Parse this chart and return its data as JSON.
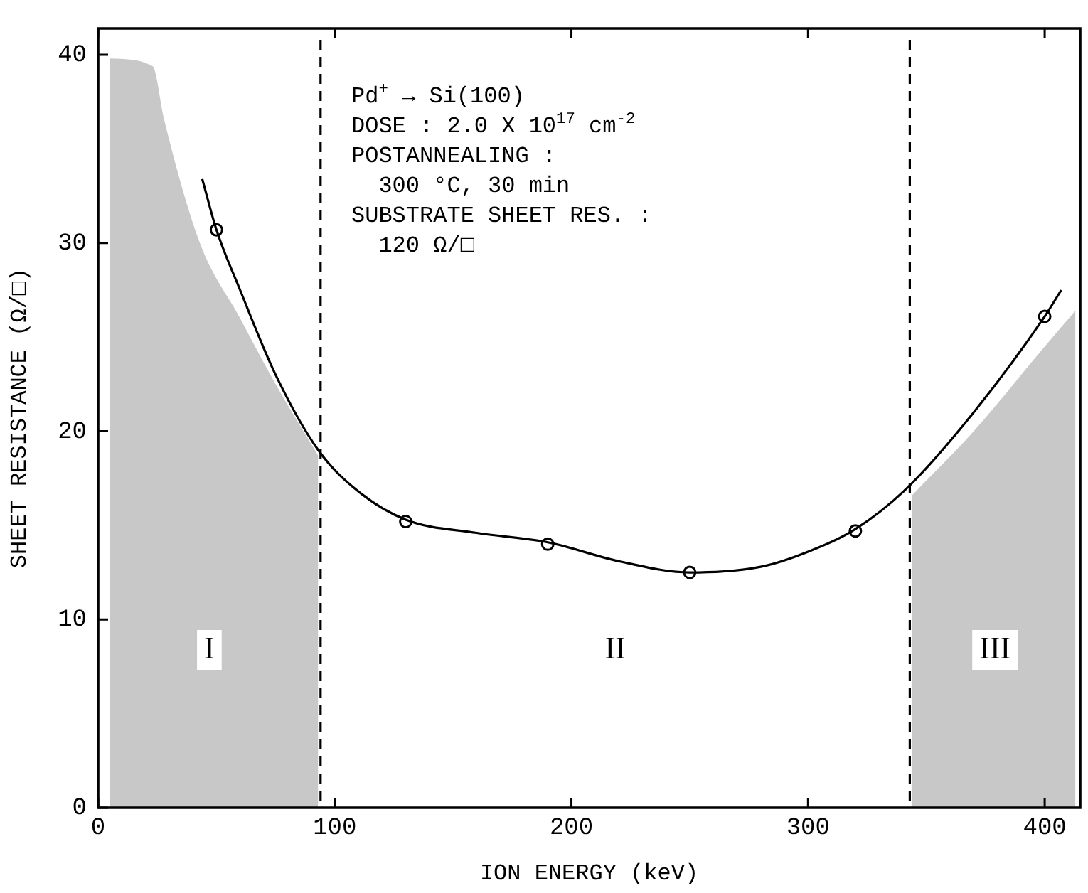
{
  "chart_data": {
    "type": "line",
    "xlabel": "ION ENERGY (keV)",
    "ylabel": "SHEET RESISTANCE (Ω/□)",
    "xlim": [
      0,
      415
    ],
    "xticks": [
      0,
      100,
      200,
      300,
      400
    ],
    "ylim": [
      0,
      41.4
    ],
    "yticks": [
      0,
      10,
      20,
      30,
      40
    ],
    "grid": false,
    "legend": false,
    "series": [
      {
        "type": "area",
        "color": "#c8c8c8",
        "x": [
          5,
          23,
          28,
          43,
          60,
          75,
          93
        ],
        "values": [
          39.8,
          39.4,
          36.5,
          30,
          26,
          22.5,
          18.7
        ]
      },
      {
        "type": "area",
        "color": "#c8c8c8",
        "x": [
          344,
          370,
          400,
          413
        ],
        "values": [
          16.6,
          20,
          24.5,
          26.4
        ]
      },
      {
        "color": "#000000",
        "marker": "none",
        "line_style": "solid",
        "x": [
          44,
          50,
          60,
          75,
          93,
          110,
          130,
          160,
          190,
          220,
          250,
          280,
          300,
          320,
          342,
          370,
          400,
          407
        ],
        "values": [
          33.4,
          30.7,
          27.5,
          23,
          19,
          16.8,
          15.3,
          14.6,
          14.1,
          13.1,
          12.5,
          12.8,
          13.6,
          14.8,
          17,
          21,
          26.1,
          27.5
        ]
      },
      {
        "type": "scatter",
        "color": "#000000",
        "marker": "circle",
        "x": [
          50,
          130,
          190,
          250,
          320,
          400
        ],
        "values": [
          30.7,
          15.2,
          14,
          12.5,
          14.7,
          26.1
        ]
      }
    ],
    "ref_lines": [
      {
        "axis": "x",
        "value": 94,
        "color": "#000000",
        "line_style": "dashed"
      },
      {
        "axis": "x",
        "value": 343,
        "color": "#000000",
        "line_style": "dashed"
      }
    ],
    "annotations": [
      "Pd$^{+}$ → Si(100)",
      "DOSE : 2.0 X 10$^{17}$ cm$^{-2}$",
      "POSTANNEALING :",
      "  300 °C, 30 min",
      "SUBSTRATE SHEET RES. :",
      "  120 Ω/□",
      "I",
      "II",
      "III"
    ]
  }
}
